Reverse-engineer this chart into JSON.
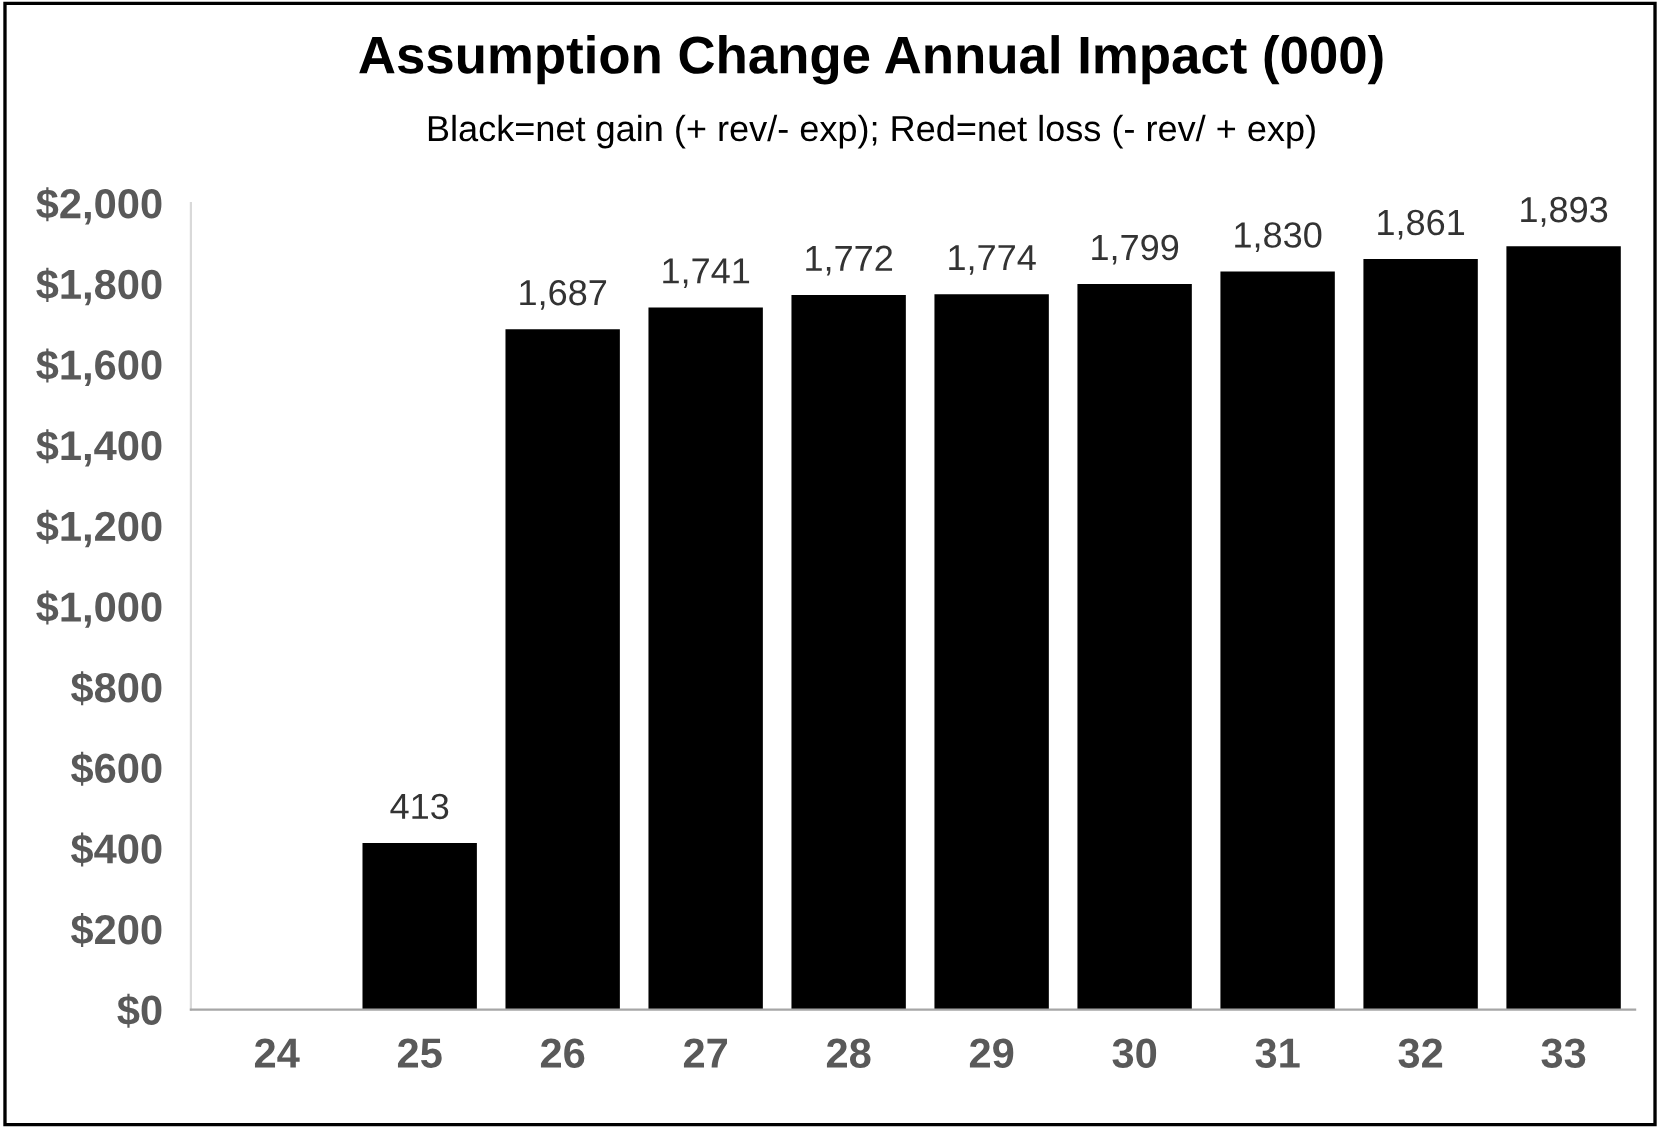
{
  "chart_data": {
    "type": "bar",
    "title": "Assumption Change Annual Impact (000)",
    "subtitle": "Black=net gain (+ rev/- exp); Red=net loss (- rev/ + exp)",
    "categories": [
      "24",
      "25",
      "26",
      "27",
      "28",
      "29",
      "30",
      "31",
      "32",
      "33"
    ],
    "values": [
      0,
      413,
      1687,
      1741,
      1772,
      1774,
      1799,
      1830,
      1861,
      1893
    ],
    "value_labels": [
      null,
      "413",
      "1,687",
      "1,741",
      "1,772",
      "1,774",
      "1,799",
      "1,830",
      "1,861",
      "1,893"
    ],
    "color": "#000000",
    "ylim": [
      0,
      2000
    ],
    "yticks": [
      {
        "value": 0,
        "label": "$0"
      },
      {
        "value": 200,
        "label": "$200"
      },
      {
        "value": 400,
        "label": "$400"
      },
      {
        "value": 600,
        "label": "$600"
      },
      {
        "value": 800,
        "label": "$800"
      },
      {
        "value": 1000,
        "label": "$1,000"
      },
      {
        "value": 1200,
        "label": "$1,200"
      },
      {
        "value": 1400,
        "label": "$1,400"
      },
      {
        "value": 1600,
        "label": "$1,600"
      },
      {
        "value": 1800,
        "label": "$1,800"
      },
      {
        "value": 2000,
        "label": "$2,000"
      }
    ],
    "grid": false,
    "legend": false
  }
}
